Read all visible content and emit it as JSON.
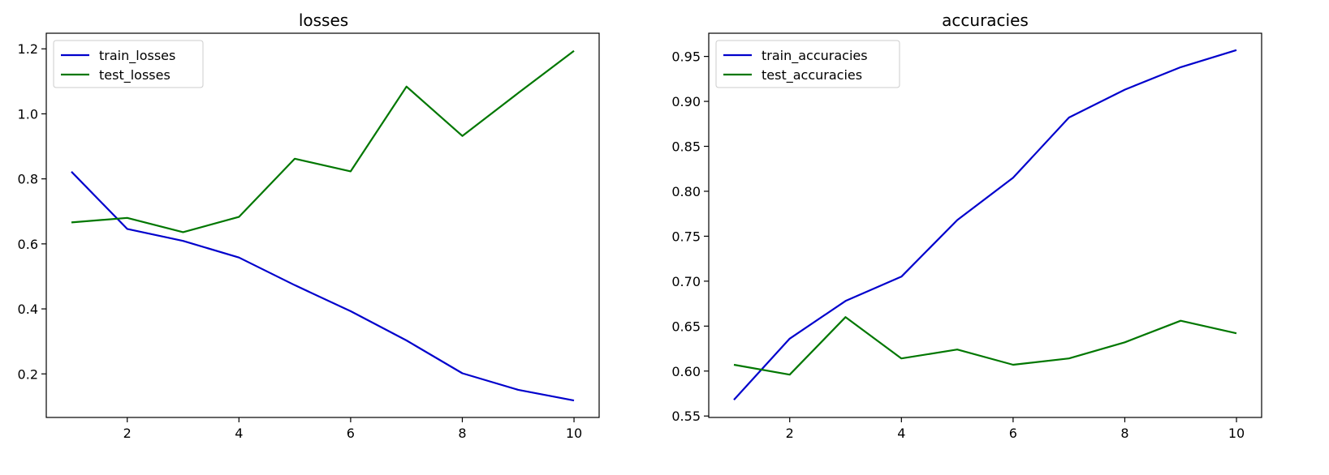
{
  "chart_data": [
    {
      "type": "line",
      "title": "losses",
      "xlabel": "",
      "ylabel": "",
      "x": [
        1,
        2,
        3,
        4,
        5,
        6,
        7,
        8,
        9,
        10
      ],
      "xlim": [
        0.55,
        10.45
      ],
      "ylim": [
        0.066,
        1.248
      ],
      "xticks": [
        2,
        4,
        6,
        8,
        10
      ],
      "yticks": [
        0.2,
        0.4,
        0.6,
        0.8,
        1.0,
        1.2
      ],
      "ytick_labels": [
        "0.2",
        "0.4",
        "0.6",
        "0.8",
        "1.0",
        "1.2"
      ],
      "grid": false,
      "legend_position": "top-left",
      "series": [
        {
          "name": "train_losses",
          "color": "#0000cc",
          "values": [
            0.822,
            0.646,
            0.609,
            0.558,
            0.473,
            0.393,
            0.303,
            0.202,
            0.151,
            0.118
          ]
        },
        {
          "name": "test_losses",
          "color": "#007700",
          "values": [
            0.666,
            0.68,
            0.636,
            0.683,
            0.862,
            0.823,
            1.084,
            0.932,
            1.064,
            1.194
          ]
        }
      ]
    },
    {
      "type": "line",
      "title": "accuracies",
      "xlabel": "",
      "ylabel": "",
      "x": [
        1,
        2,
        3,
        4,
        5,
        6,
        7,
        8,
        9,
        10
      ],
      "xlim": [
        0.55,
        10.45
      ],
      "ylim": [
        0.5484,
        0.9758
      ],
      "xticks": [
        2,
        4,
        6,
        8,
        10
      ],
      "yticks": [
        0.55,
        0.6,
        0.65,
        0.7,
        0.75,
        0.8,
        0.85,
        0.9,
        0.95
      ],
      "ytick_labels": [
        "0.55",
        "0.60",
        "0.65",
        "0.70",
        "0.75",
        "0.80",
        "0.85",
        "0.90",
        "0.95"
      ],
      "grid": false,
      "legend_position": "top-left",
      "series": [
        {
          "name": "train_accuracies",
          "color": "#0000cc",
          "values": [
            0.568,
            0.636,
            0.678,
            0.705,
            0.768,
            0.815,
            0.882,
            0.913,
            0.938,
            0.957
          ]
        },
        {
          "name": "test_accuracies",
          "color": "#007700",
          "values": [
            0.607,
            0.596,
            0.66,
            0.614,
            0.624,
            0.607,
            0.614,
            0.632,
            0.656,
            0.642
          ]
        }
      ]
    }
  ]
}
